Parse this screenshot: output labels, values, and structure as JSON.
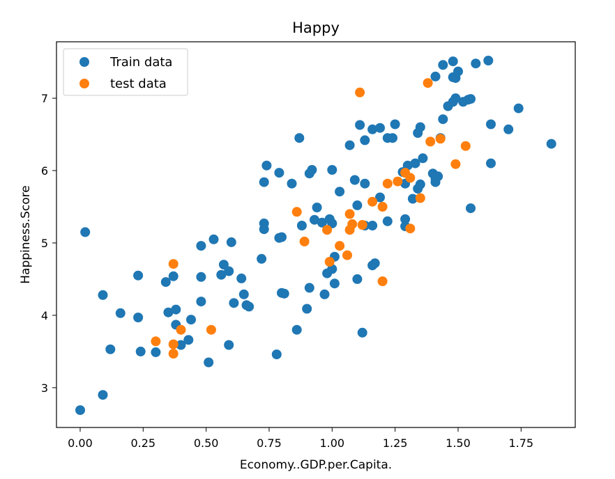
{
  "chart_data": {
    "type": "scatter",
    "title": "Happy",
    "xlabel": "Economy..GDP.per.Capita.",
    "ylabel": "Happiness.Score",
    "xlim": [
      -0.094,
      1.965
    ],
    "ylim": [
      2.45,
      7.78
    ],
    "xticks": [
      0.0,
      0.25,
      0.5,
      0.75,
      1.0,
      1.25,
      1.5,
      1.75
    ],
    "xtick_labels": [
      "0.00",
      "0.25",
      "0.50",
      "0.75",
      "1.00",
      "1.25",
      "1.50",
      "1.75"
    ],
    "yticks": [
      3,
      4,
      5,
      6,
      7
    ],
    "ytick_labels": [
      "3",
      "4",
      "5",
      "6",
      "7"
    ],
    "grid": false,
    "legend_position": "top-left",
    "series": [
      {
        "name": "Train data",
        "color": "#1f77b4",
        "points": [
          [
            0.0,
            2.69
          ],
          [
            0.02,
            5.15
          ],
          [
            0.09,
            2.9
          ],
          [
            0.09,
            4.28
          ],
          [
            0.12,
            3.53
          ],
          [
            0.16,
            4.03
          ],
          [
            0.23,
            3.97
          ],
          [
            0.23,
            4.55
          ],
          [
            0.24,
            3.5
          ],
          [
            0.3,
            3.49
          ],
          [
            0.34,
            4.46
          ],
          [
            0.35,
            4.04
          ],
          [
            0.37,
            4.54
          ],
          [
            0.38,
            3.87
          ],
          [
            0.38,
            4.08
          ],
          [
            0.4,
            3.59
          ],
          [
            0.43,
            3.66
          ],
          [
            0.44,
            3.94
          ],
          [
            0.48,
            4.19
          ],
          [
            0.48,
            4.53
          ],
          [
            0.48,
            4.96
          ],
          [
            0.51,
            3.35
          ],
          [
            0.53,
            5.05
          ],
          [
            0.56,
            4.56
          ],
          [
            0.57,
            4.7
          ],
          [
            0.59,
            4.61
          ],
          [
            0.59,
            3.59
          ],
          [
            0.6,
            5.01
          ],
          [
            0.61,
            4.17
          ],
          [
            0.64,
            4.51
          ],
          [
            0.65,
            4.29
          ],
          [
            0.66,
            4.14
          ],
          [
            0.67,
            4.12
          ],
          [
            0.72,
            4.78
          ],
          [
            0.73,
            5.27
          ],
          [
            0.73,
            5.19
          ],
          [
            0.73,
            5.84
          ],
          [
            0.74,
            6.07
          ],
          [
            0.78,
            3.46
          ],
          [
            0.79,
            5.07
          ],
          [
            0.79,
            5.97
          ],
          [
            0.8,
            5.08
          ],
          [
            0.8,
            4.31
          ],
          [
            0.81,
            4.3
          ],
          [
            0.84,
            5.82
          ],
          [
            0.86,
            3.8
          ],
          [
            0.87,
            6.45
          ],
          [
            0.88,
            5.24
          ],
          [
            0.9,
            4.09
          ],
          [
            0.91,
            4.38
          ],
          [
            0.91,
            5.96
          ],
          [
            0.92,
            6.01
          ],
          [
            0.93,
            5.32
          ],
          [
            0.94,
            5.49
          ],
          [
            0.96,
            5.28
          ],
          [
            0.97,
            4.29
          ],
          [
            0.98,
            4.58
          ],
          [
            0.99,
            5.33
          ],
          [
            1.0,
            5.27
          ],
          [
            1.0,
            4.64
          ],
          [
            1.0,
            6.01
          ],
          [
            1.01,
            4.81
          ],
          [
            1.01,
            4.44
          ],
          [
            1.03,
            5.71
          ],
          [
            1.07,
            6.35
          ],
          [
            1.09,
            5.87
          ],
          [
            1.1,
            5.52
          ],
          [
            1.1,
            4.5
          ],
          [
            1.11,
            6.63
          ],
          [
            1.12,
            3.76
          ],
          [
            1.13,
            6.42
          ],
          [
            1.13,
            5.82
          ],
          [
            1.13,
            5.24
          ],
          [
            1.16,
            5.24
          ],
          [
            1.16,
            6.57
          ],
          [
            1.16,
            4.69
          ],
          [
            1.17,
            4.72
          ],
          [
            1.19,
            6.59
          ],
          [
            1.19,
            5.63
          ],
          [
            1.22,
            6.45
          ],
          [
            1.22,
            5.3
          ],
          [
            1.24,
            6.45
          ],
          [
            1.25,
            6.64
          ],
          [
            1.28,
            5.98
          ],
          [
            1.29,
            5.82
          ],
          [
            1.29,
            5.33
          ],
          [
            1.29,
            5.23
          ],
          [
            1.3,
            6.07
          ],
          [
            1.32,
            5.61
          ],
          [
            1.33,
            6.1
          ],
          [
            1.34,
            6.52
          ],
          [
            1.34,
            5.75
          ],
          [
            1.35,
            5.81
          ],
          [
            1.35,
            6.6
          ],
          [
            1.36,
            6.17
          ],
          [
            1.4,
            5.96
          ],
          [
            1.41,
            7.3
          ],
          [
            1.41,
            5.84
          ],
          [
            1.41,
            5.89
          ],
          [
            1.42,
            5.92
          ],
          [
            1.43,
            6.45
          ],
          [
            1.44,
            6.71
          ],
          [
            1.44,
            7.46
          ],
          [
            1.46,
            6.89
          ],
          [
            1.48,
            7.29
          ],
          [
            1.48,
            7.51
          ],
          [
            1.48,
            6.95
          ],
          [
            1.49,
            7.0
          ],
          [
            1.49,
            7.28
          ],
          [
            1.5,
            7.37
          ],
          [
            1.52,
            6.95
          ],
          [
            1.54,
            6.98
          ],
          [
            1.55,
            6.99
          ],
          [
            1.55,
            5.48
          ],
          [
            1.57,
            7.48
          ],
          [
            1.62,
            7.52
          ],
          [
            1.63,
            6.64
          ],
          [
            1.63,
            6.1
          ],
          [
            1.7,
            6.57
          ],
          [
            1.74,
            6.86
          ],
          [
            1.87,
            6.37
          ]
        ]
      },
      {
        "name": "test data",
        "color": "#ff7f0e",
        "points": [
          [
            0.3,
            3.64
          ],
          [
            0.37,
            4.71
          ],
          [
            0.37,
            3.6
          ],
          [
            0.37,
            3.47
          ],
          [
            0.4,
            3.8
          ],
          [
            0.52,
            3.8
          ],
          [
            0.86,
            5.43
          ],
          [
            0.89,
            5.02
          ],
          [
            0.98,
            5.18
          ],
          [
            0.99,
            4.74
          ],
          [
            1.03,
            4.96
          ],
          [
            1.06,
            4.83
          ],
          [
            1.07,
            5.18
          ],
          [
            1.07,
            5.4
          ],
          [
            1.08,
            5.26
          ],
          [
            1.11,
            7.08
          ],
          [
            1.12,
            5.25
          ],
          [
            1.16,
            5.57
          ],
          [
            1.2,
            5.5
          ],
          [
            1.2,
            4.47
          ],
          [
            1.22,
            5.82
          ],
          [
            1.26,
            5.85
          ],
          [
            1.29,
            5.97
          ],
          [
            1.31,
            5.9
          ],
          [
            1.31,
            5.2
          ],
          [
            1.35,
            5.62
          ],
          [
            1.38,
            7.21
          ],
          [
            1.39,
            6.4
          ],
          [
            1.43,
            6.44
          ],
          [
            1.49,
            6.09
          ],
          [
            1.53,
            6.34
          ]
        ]
      }
    ]
  }
}
